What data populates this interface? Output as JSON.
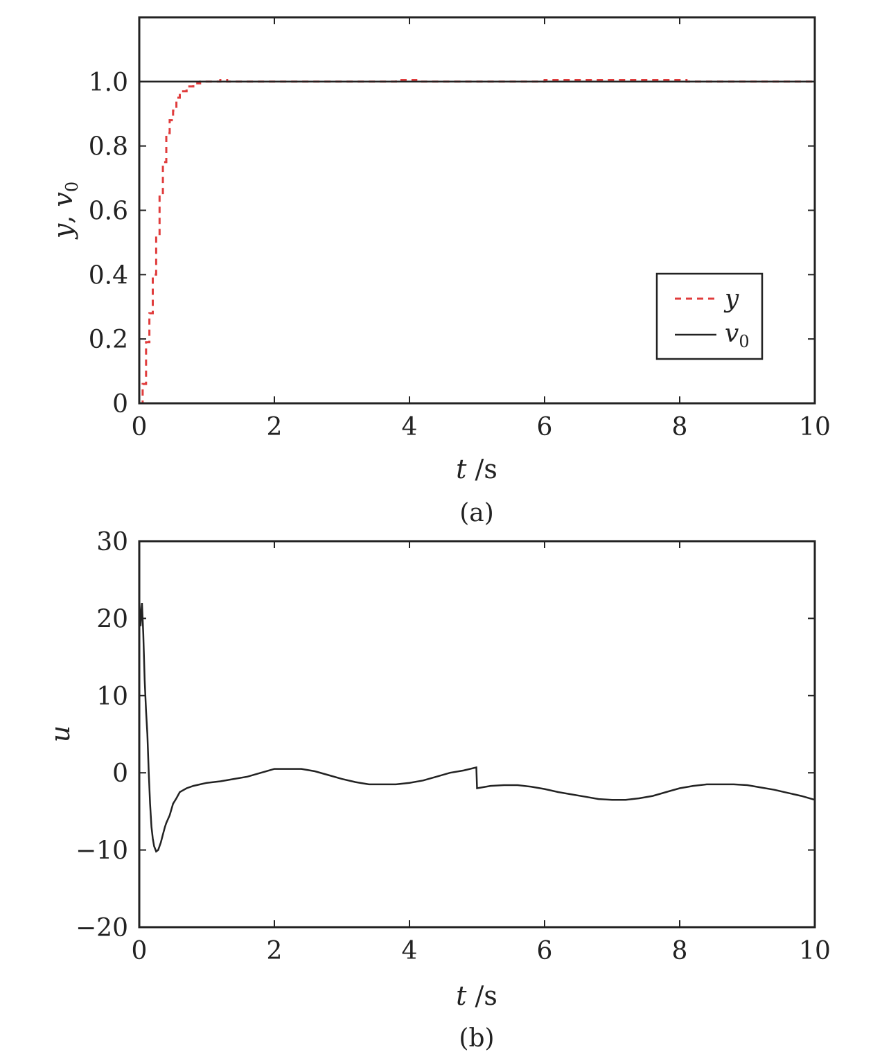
{
  "colors": {
    "y_series": "#e03c3c",
    "v0_series": "#222222",
    "u_series": "#222222",
    "axes": "#222222"
  },
  "chart_data": [
    {
      "type": "line",
      "caption": "(a)",
      "xlabel_var": "t",
      "xlabel_unit": " /s",
      "ylabel_parts": [
        "y",
        ", ",
        "v",
        "0"
      ],
      "xlim": [
        0,
        10
      ],
      "ylim": [
        0,
        1.2
      ],
      "xticks": [
        0,
        2,
        4,
        6,
        8,
        10
      ],
      "xtick_labels": [
        "0",
        "2",
        "4",
        "6",
        "8",
        "10"
      ],
      "yticks": [
        0,
        0.2,
        0.4,
        0.6,
        0.8,
        1.0
      ],
      "ytick_labels": [
        "0",
        "0.2",
        "0.4",
        "0.6",
        "0.8",
        "1.0"
      ],
      "grid": false,
      "legend": "bottom-right",
      "series": [
        {
          "name": "y",
          "name_sub": "",
          "style": "dashed",
          "x": [
            0,
            0.05,
            0.05,
            0.1,
            0.1,
            0.15,
            0.15,
            0.2,
            0.2,
            0.25,
            0.25,
            0.3,
            0.3,
            0.35,
            0.35,
            0.4,
            0.4,
            0.45,
            0.45,
            0.5,
            0.5,
            0.55,
            0.55,
            0.6,
            0.6,
            0.7,
            0.7,
            0.8,
            0.8,
            0.9,
            0.9,
            1.2,
            1.2,
            1.3,
            1.3,
            1.45,
            1.45,
            3.8,
            3.8,
            4.1,
            4.1,
            6.0,
            6.0,
            8.1,
            8.1,
            10
          ],
          "y": [
            0,
            0,
            0.06,
            0.06,
            0.19,
            0.19,
            0.28,
            0.28,
            0.4,
            0.4,
            0.52,
            0.52,
            0.65,
            0.65,
            0.75,
            0.75,
            0.84,
            0.84,
            0.88,
            0.88,
            0.91,
            0.91,
            0.95,
            0.95,
            0.97,
            0.97,
            0.985,
            0.985,
            0.995,
            0.995,
            1.0,
            1.0,
            1.005,
            1.005,
            1.0,
            1.0,
            1.0,
            1.0,
            1.005,
            1.005,
            1.0,
            1.0,
            1.005,
            1.005,
            1.0,
            1.0
          ]
        },
        {
          "name": "v",
          "name_sub": "0",
          "style": "solid",
          "x": [
            0,
            0,
            10
          ],
          "y": [
            0,
            1,
            1
          ]
        }
      ]
    },
    {
      "type": "line",
      "caption": "(b)",
      "xlabel_var": "t",
      "xlabel_unit": " /s",
      "ylabel": "u",
      "xlim": [
        0,
        10
      ],
      "ylim": [
        -20,
        30
      ],
      "xticks": [
        0,
        2,
        4,
        6,
        8,
        10
      ],
      "xtick_labels": [
        "0",
        "2",
        "4",
        "6",
        "8",
        "10"
      ],
      "yticks": [
        -20,
        -10,
        0,
        10,
        20,
        30
      ],
      "ytick_labels": [
        "−20",
        "−10",
        "0",
        "10",
        "20",
        "30"
      ],
      "grid": false,
      "series": [
        {
          "style": "solid",
          "x": [
            0,
            0.02,
            0.04,
            0.06,
            0.08,
            0.1,
            0.12,
            0.14,
            0.16,
            0.18,
            0.2,
            0.22,
            0.25,
            0.28,
            0.3,
            0.32,
            0.35,
            0.38,
            0.4,
            0.45,
            0.5,
            0.55,
            0.6,
            0.7,
            0.8,
            0.9,
            1.0,
            1.2,
            1.4,
            1.6,
            1.8,
            2.0,
            2.2,
            2.4,
            2.6,
            2.8,
            3.0,
            3.2,
            3.4,
            3.6,
            3.8,
            4.0,
            4.2,
            4.4,
            4.6,
            4.8,
            4.99,
            5.0,
            5.2,
            5.4,
            5.6,
            5.8,
            6.0,
            6.2,
            6.4,
            6.6,
            6.8,
            7.0,
            7.2,
            7.4,
            7.6,
            7.8,
            8.0,
            8.2,
            8.4,
            8.6,
            8.8,
            9.0,
            9.2,
            9.4,
            9.6,
            9.8,
            10.0
          ],
          "y": [
            22.5,
            19,
            22,
            18,
            12,
            8,
            5,
            0,
            -4,
            -7,
            -8.5,
            -9.5,
            -10.2,
            -10,
            -9.5,
            -9,
            -8,
            -7,
            -6.5,
            -5.5,
            -4,
            -3.3,
            -2.5,
            -2,
            -1.7,
            -1.5,
            -1.3,
            -1.1,
            -0.8,
            -0.5,
            0,
            0.5,
            0.5,
            0.5,
            0.2,
            -0.3,
            -0.8,
            -1.2,
            -1.5,
            -1.5,
            -1.5,
            -1.3,
            -1.0,
            -0.5,
            0,
            0.3,
            0.7,
            -2.0,
            -1.7,
            -1.6,
            -1.6,
            -1.8,
            -2.1,
            -2.5,
            -2.8,
            -3.1,
            -3.4,
            -3.5,
            -3.5,
            -3.3,
            -3.0,
            -2.5,
            -2.0,
            -1.7,
            -1.5,
            -1.5,
            -1.5,
            -1.6,
            -1.9,
            -2.2,
            -2.6,
            -3.0,
            -3.5
          ]
        }
      ]
    }
  ]
}
